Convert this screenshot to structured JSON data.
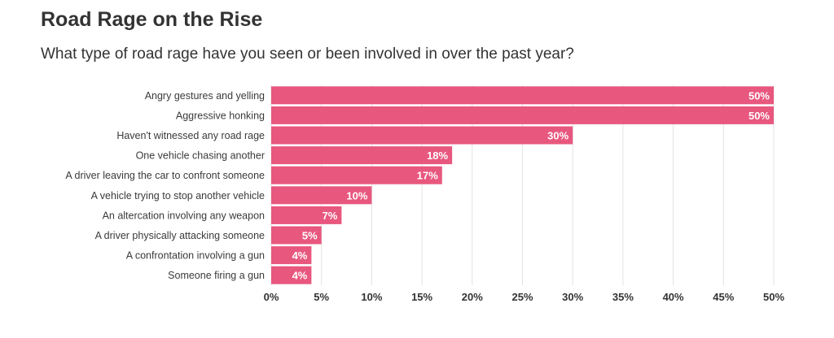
{
  "header": {
    "title": "Road Rage on the Rise",
    "subtitle": "What type of road rage have you seen or been involved in over the past year?"
  },
  "colors": {
    "bar": "#e8577e",
    "grid": "#e2e2e2",
    "text": "#333333"
  },
  "chart_data": {
    "type": "bar",
    "orientation": "horizontal",
    "title": "Road Rage on the Rise",
    "subtitle": "What type of road rage have you seen or been involved in over the past year?",
    "categories": [
      "Angry gestures and yelling",
      "Aggressive honking",
      "Haven't witnessed any road rage",
      "One vehicle chasing another",
      "A driver leaving the car to confront someone",
      "A vehicle trying to stop another vehicle",
      "An altercation involving any weapon",
      "A driver physically attacking someone",
      "A confrontation involving a gun",
      "Someone firing a gun"
    ],
    "values": [
      50,
      50,
      30,
      18,
      17,
      10,
      7,
      5,
      4,
      4
    ],
    "value_labels": [
      "50%",
      "50%",
      "30%",
      "18%",
      "17%",
      "10%",
      "7%",
      "5%",
      "4%",
      "4%"
    ],
    "xlim": [
      0,
      50
    ],
    "xticks": [
      0,
      5,
      10,
      15,
      20,
      25,
      30,
      35,
      40,
      45,
      50
    ],
    "xtick_labels": [
      "0%",
      "5%",
      "10%",
      "15%",
      "20%",
      "25%",
      "30%",
      "35%",
      "40%",
      "45%",
      "50%"
    ],
    "grid": true,
    "legend": "none"
  }
}
